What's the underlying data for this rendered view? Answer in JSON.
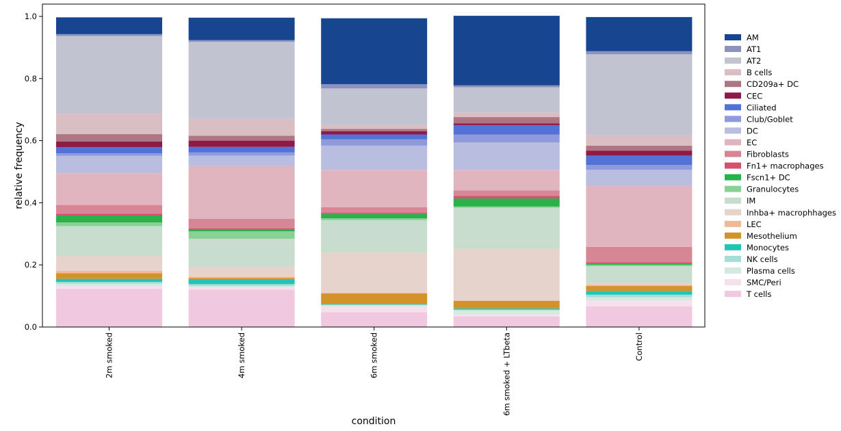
{
  "chart_data": {
    "type": "bar",
    "stacked": true,
    "xlabel": "condition",
    "ylabel": "relative frequency",
    "ylim": [
      0,
      1.0
    ],
    "yticks": [
      "0.0",
      "0.2",
      "0.4",
      "0.6",
      "0.8",
      "1.0"
    ],
    "categories": [
      "2m smoked",
      "4m smoked",
      "6m smoked",
      "6m smoked + LTbeta",
      "Control"
    ],
    "legend_position": "right",
    "series": [
      {
        "name": "T cells",
        "color": "#f0c8e0",
        "values": [
          0.123,
          0.12,
          0.048,
          0.034,
          0.066
        ]
      },
      {
        "name": "SMC/Peri",
        "color": "#f5e1ec",
        "values": [
          0.008,
          0.008,
          0.018,
          0.006,
          0.02
        ]
      },
      {
        "name": "Plasma cells",
        "color": "#d3e9e1",
        "values": [
          0.008,
          0.004,
          0.004,
          0.014,
          0.01
        ]
      },
      {
        "name": "NK cells",
        "color": "#a6ded5",
        "values": [
          0.006,
          0.006,
          0.002,
          0.002,
          0.008
        ]
      },
      {
        "name": "Monocytes",
        "color": "#22c4b5",
        "values": [
          0.01,
          0.014,
          0.002,
          0.004,
          0.012
        ]
      },
      {
        "name": "Mesothelium",
        "color": "#d3922a",
        "values": [
          0.018,
          0.006,
          0.034,
          0.024,
          0.016
        ]
      },
      {
        "name": "LEC",
        "color": "#f2b894",
        "values": [
          0.008,
          0.004,
          0.002,
          0.002,
          0.004
        ]
      },
      {
        "name": "Inhba+ macrophhages",
        "color": "#e6d4cc",
        "values": [
          0.048,
          0.032,
          0.13,
          0.166,
          0.006
        ]
      },
      {
        "name": "IM",
        "color": "#c8ddcd",
        "values": [
          0.096,
          0.09,
          0.104,
          0.132,
          0.054
        ]
      },
      {
        "name": "Granulocytes",
        "color": "#88d094",
        "values": [
          0.012,
          0.024,
          0.006,
          0.004,
          0.004
        ]
      },
      {
        "name": "Fscn1+ DC",
        "color": "#2ab24a",
        "values": [
          0.022,
          0.006,
          0.014,
          0.026,
          0.004
        ]
      },
      {
        "name": "Fn1+ macrophages",
        "color": "#d45070",
        "values": [
          0.006,
          0.004,
          0.004,
          0.008,
          0.004
        ]
      },
      {
        "name": "Fibroblasts",
        "color": "#d78696",
        "values": [
          0.028,
          0.03,
          0.018,
          0.018,
          0.05
        ]
      },
      {
        "name": "EC",
        "color": "#e0b5bf",
        "values": [
          0.102,
          0.17,
          0.12,
          0.066,
          0.196
        ]
      },
      {
        "name": "DC",
        "color": "#b9bde0",
        "values": [
          0.056,
          0.034,
          0.078,
          0.088,
          0.052
        ]
      },
      {
        "name": "Club/Goblet",
        "color": "#8e9adc",
        "values": [
          0.008,
          0.01,
          0.02,
          0.026,
          0.016
        ]
      },
      {
        "name": "Ciliated",
        "color": "#5272d8",
        "values": [
          0.02,
          0.018,
          0.016,
          0.03,
          0.03
        ]
      },
      {
        "name": "CEC",
        "color": "#8d1b4a",
        "values": [
          0.018,
          0.02,
          0.01,
          0.006,
          0.016
        ]
      },
      {
        "name": "CD209a+ DC",
        "color": "#b07583",
        "values": [
          0.024,
          0.016,
          0.008,
          0.02,
          0.016
        ]
      },
      {
        "name": "B cells",
        "color": "#d9bfc4",
        "values": [
          0.066,
          0.054,
          0.012,
          0.014,
          0.034
        ]
      },
      {
        "name": "AT2",
        "color": "#c2c3d0",
        "values": [
          0.25,
          0.248,
          0.118,
          0.082,
          0.26
        ]
      },
      {
        "name": "AT1",
        "color": "#8d91bd",
        "values": [
          0.006,
          0.006,
          0.014,
          0.006,
          0.01
        ]
      },
      {
        "name": "AM",
        "color": "#17458f",
        "values": [
          0.054,
          0.072,
          0.212,
          0.224,
          0.11
        ]
      }
    ]
  }
}
